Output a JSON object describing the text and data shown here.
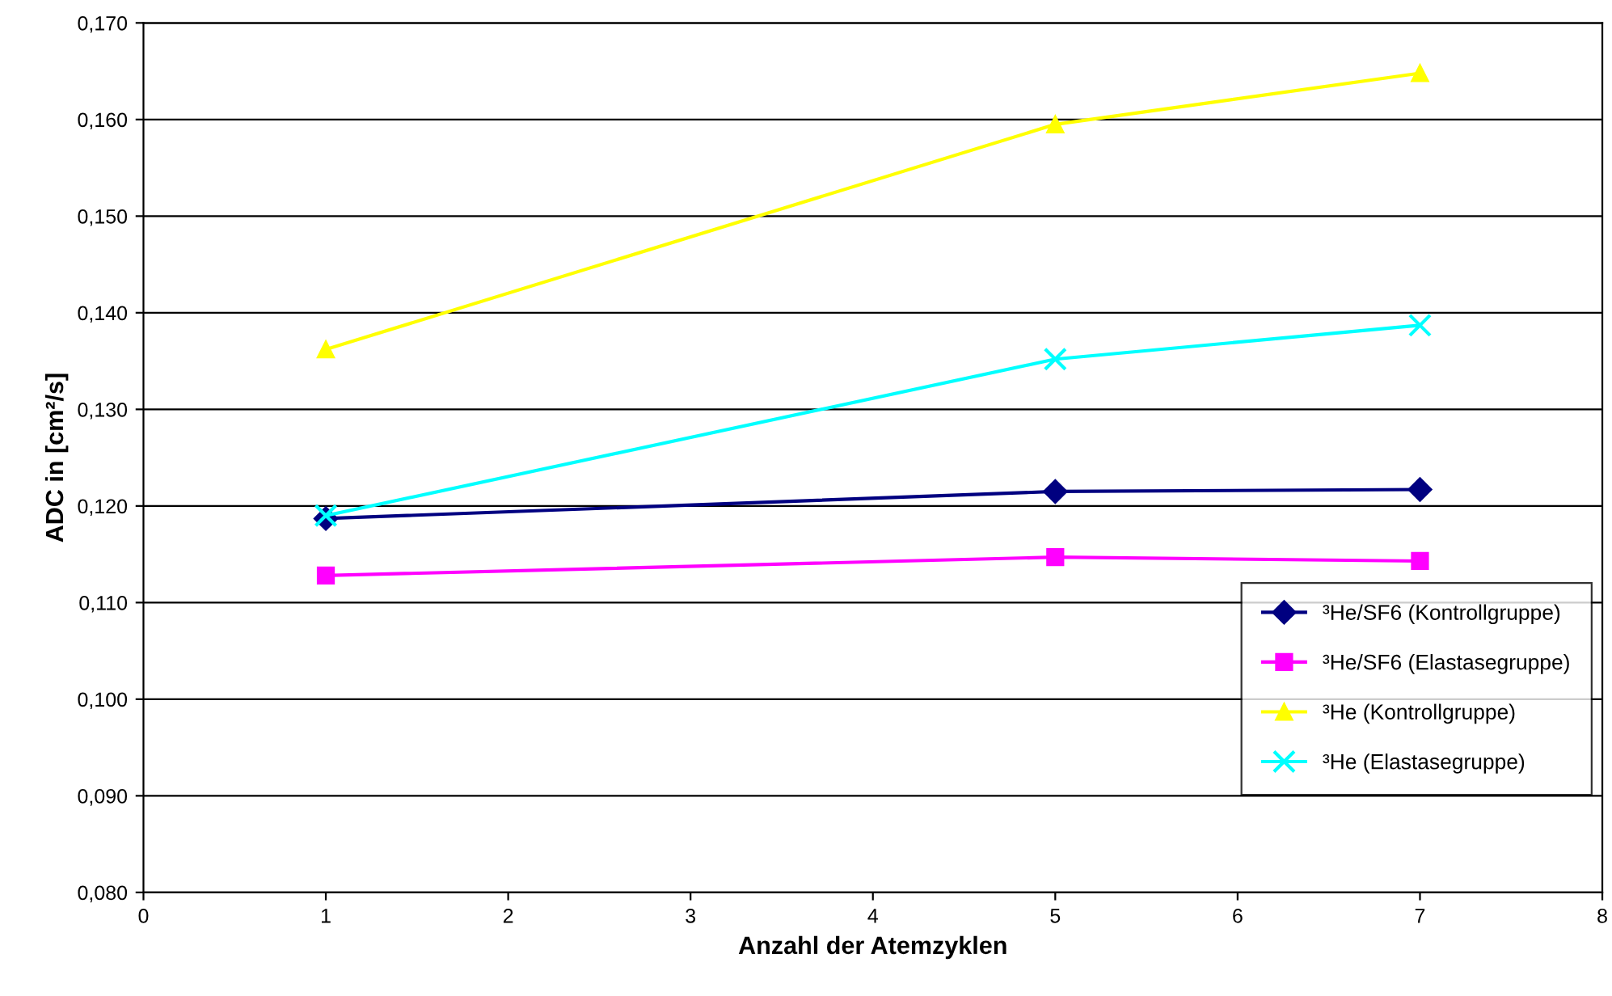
{
  "chart_data": {
    "type": "line",
    "xlabel": "Anzahl der Atemzyklen",
    "ylabel": "ADC in [cm²/s]",
    "x": [
      1,
      5,
      7
    ],
    "series": [
      {
        "name": "³He/SF6 (Kontrollgruppe)",
        "color": "#000080",
        "marker": "diamond",
        "values": [
          0.1187,
          0.1215,
          0.1217
        ]
      },
      {
        "name": "³He/SF6 (Elastasegruppe)",
        "color": "#ff00ff",
        "marker": "square",
        "values": [
          0.1128,
          0.1147,
          0.1143
        ]
      },
      {
        "name": "³He (Kontrollgruppe)",
        "color": "#ffff00",
        "marker": "triangle",
        "values": [
          0.1362,
          0.1595,
          0.1648
        ]
      },
      {
        "name": "³He (Elastasegruppe)",
        "color": "#00ffff",
        "marker": "cross",
        "values": [
          0.119,
          0.1352,
          0.1387
        ]
      }
    ],
    "xlim": [
      0,
      8
    ],
    "xticks": [
      0,
      1,
      2,
      3,
      4,
      5,
      6,
      7,
      8
    ],
    "ylim": [
      0.08,
      0.17
    ],
    "yticks": [
      {
        "value": 0.08,
        "label": "0,080"
      },
      {
        "value": 0.09,
        "label": "0,090"
      },
      {
        "value": 0.1,
        "label": "0,100"
      },
      {
        "value": 0.11,
        "label": "0,110"
      },
      {
        "value": 0.12,
        "label": "0,120"
      },
      {
        "value": 0.13,
        "label": "0,130"
      },
      {
        "value": 0.14,
        "label": "0,140"
      },
      {
        "value": 0.15,
        "label": "0,150"
      },
      {
        "value": 0.16,
        "label": "0,160"
      },
      {
        "value": 0.17,
        "label": "0,170"
      }
    ],
    "grid": "y",
    "legend": "bottom right",
    "line_style": "solid"
  }
}
